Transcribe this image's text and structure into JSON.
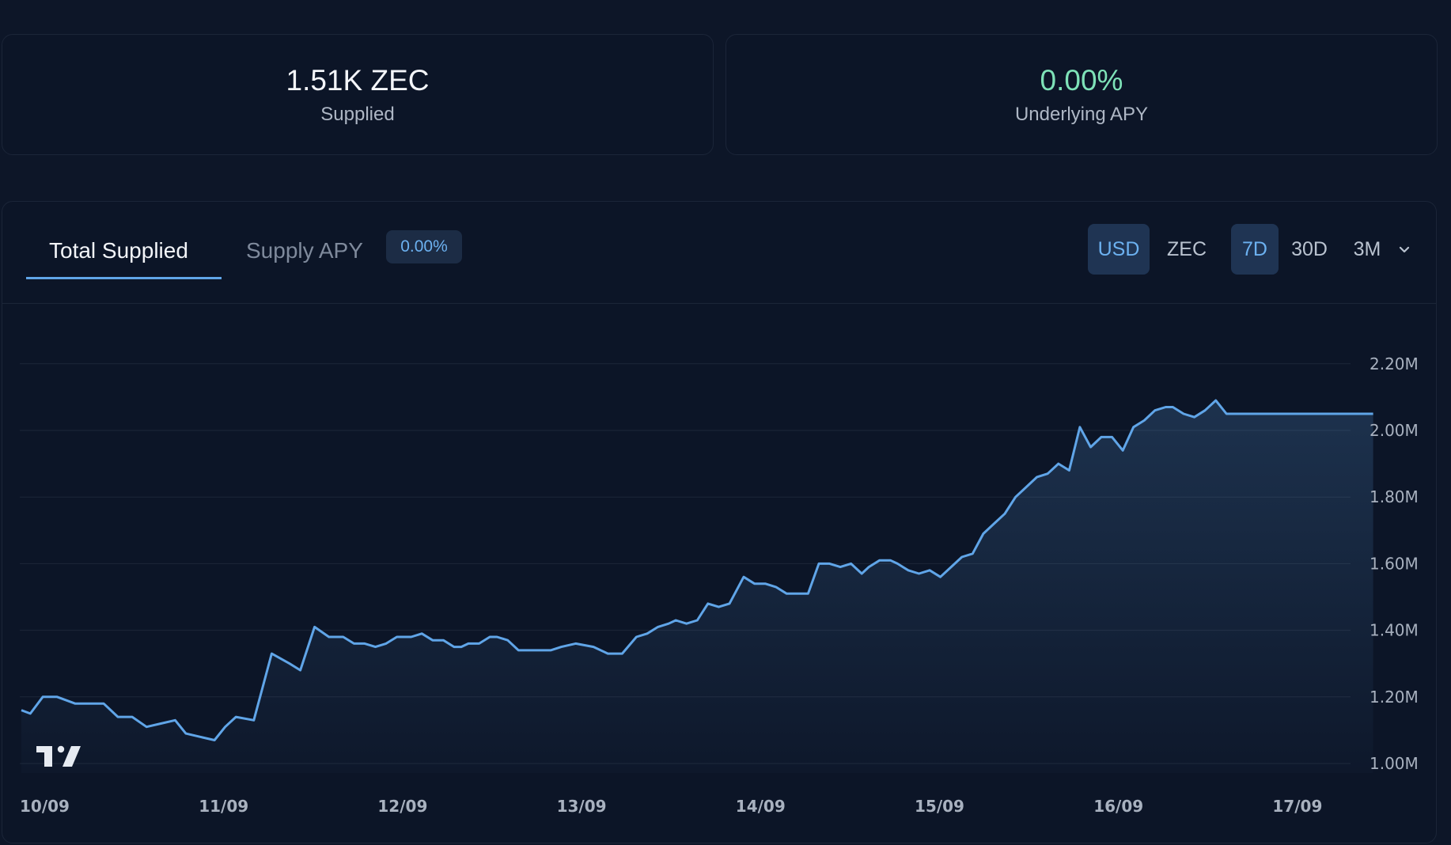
{
  "stats": {
    "supplied": {
      "value": "1.51K ZEC",
      "label": "Supplied"
    },
    "apy": {
      "value": "0.00%",
      "label": "Underlying APY"
    }
  },
  "tabs": {
    "total_supplied": "Total Supplied",
    "supply_apy": "Supply APY",
    "apy_badge": "0.00%"
  },
  "controls": {
    "currency": [
      "USD",
      "ZEC"
    ],
    "currency_selected": "USD",
    "ranges": [
      "7D",
      "30D",
      "3M"
    ],
    "range_selected": "7D",
    "dropdown_icon": "chevron-down-icon"
  },
  "colors": {
    "line": "#60a5e8",
    "positive": "#7ee2b8",
    "accent_bg": "#1f3453"
  },
  "chart_data": {
    "type": "area",
    "x_ticks": [
      "10/09",
      "11/09",
      "12/09",
      "13/09",
      "14/09",
      "15/09",
      "16/09",
      "17/09"
    ],
    "y_ticks": [
      "1.00M",
      "1.20M",
      "1.40M",
      "1.60M",
      "1.80M",
      "2.00M",
      "2.20M"
    ],
    "ylim": [
      1.0,
      2.2
    ],
    "y_unit": "M USD",
    "grid": true,
    "series": [
      {
        "x": [
          0,
          0.05,
          0.12,
          0.2,
          0.3,
          0.38,
          0.46,
          0.54,
          0.62,
          0.7,
          0.78,
          0.86,
          0.92,
          1.0,
          1.08,
          1.14,
          1.2,
          1.3,
          1.4,
          1.5,
          1.56,
          1.64,
          1.72,
          1.8,
          1.86,
          1.92,
          1.98,
          2.04,
          2.1,
          2.14,
          2.18,
          2.24,
          2.3,
          2.36,
          2.42,
          2.46,
          2.5,
          2.56,
          2.62,
          2.66,
          2.72,
          2.78,
          2.84,
          2.9,
          2.96,
          3.02,
          3.1,
          3.2,
          3.28,
          3.36,
          3.44,
          3.5,
          3.56,
          3.62,
          3.66,
          3.72,
          3.78,
          3.84,
          3.9,
          3.96,
          4.04,
          4.1,
          4.16,
          4.22,
          4.28,
          4.34,
          4.4,
          4.46,
          4.52,
          4.58,
          4.64,
          4.7,
          4.74,
          4.8,
          4.86,
          4.9,
          4.96,
          5.02,
          5.08,
          5.14,
          5.2,
          5.26,
          5.32,
          5.38,
          5.44,
          5.5,
          5.56,
          5.62,
          5.68,
          5.74,
          5.8,
          5.86,
          5.92,
          5.98,
          6.04,
          6.1,
          6.16,
          6.22,
          6.28,
          6.34,
          6.4,
          6.44,
          6.5,
          6.56,
          6.62,
          6.68,
          6.74,
          6.8,
          6.84,
          6.9,
          6.96,
          7.02,
          7.08,
          7.14,
          7.2,
          7.26,
          7.32,
          7.38,
          7.44,
          7.48,
          7.52,
          7.56
        ],
        "y": [
          1.16,
          1.15,
          1.2,
          1.2,
          1.18,
          1.18,
          1.18,
          1.14,
          1.14,
          1.11,
          1.12,
          1.13,
          1.09,
          1.08,
          1.07,
          1.11,
          1.14,
          1.13,
          1.33,
          1.3,
          1.28,
          1.41,
          1.38,
          1.38,
          1.36,
          1.36,
          1.35,
          1.36,
          1.38,
          1.38,
          1.38,
          1.39,
          1.37,
          1.37,
          1.35,
          1.35,
          1.36,
          1.36,
          1.38,
          1.38,
          1.37,
          1.34,
          1.34,
          1.34,
          1.34,
          1.35,
          1.36,
          1.35,
          1.33,
          1.33,
          1.38,
          1.39,
          1.41,
          1.42,
          1.43,
          1.42,
          1.43,
          1.48,
          1.47,
          1.48,
          1.56,
          1.54,
          1.54,
          1.53,
          1.51,
          1.51,
          1.51,
          1.6,
          1.6,
          1.59,
          1.6,
          1.57,
          1.59,
          1.61,
          1.61,
          1.6,
          1.58,
          1.57,
          1.58,
          1.56,
          1.59,
          1.62,
          1.63,
          1.69,
          1.72,
          1.75,
          1.8,
          1.83,
          1.86,
          1.87,
          1.9,
          1.88,
          2.01,
          1.95,
          1.98,
          1.98,
          1.94,
          2.01,
          2.03,
          2.06,
          2.07,
          2.07,
          2.05,
          2.04,
          2.06,
          2.09,
          2.05,
          2.05,
          2.05,
          2.05,
          2.05,
          2.05,
          2.05,
          2.05,
          2.05,
          2.05,
          2.05,
          2.05,
          2.05,
          2.05,
          2.05,
          2.05
        ]
      }
    ]
  }
}
